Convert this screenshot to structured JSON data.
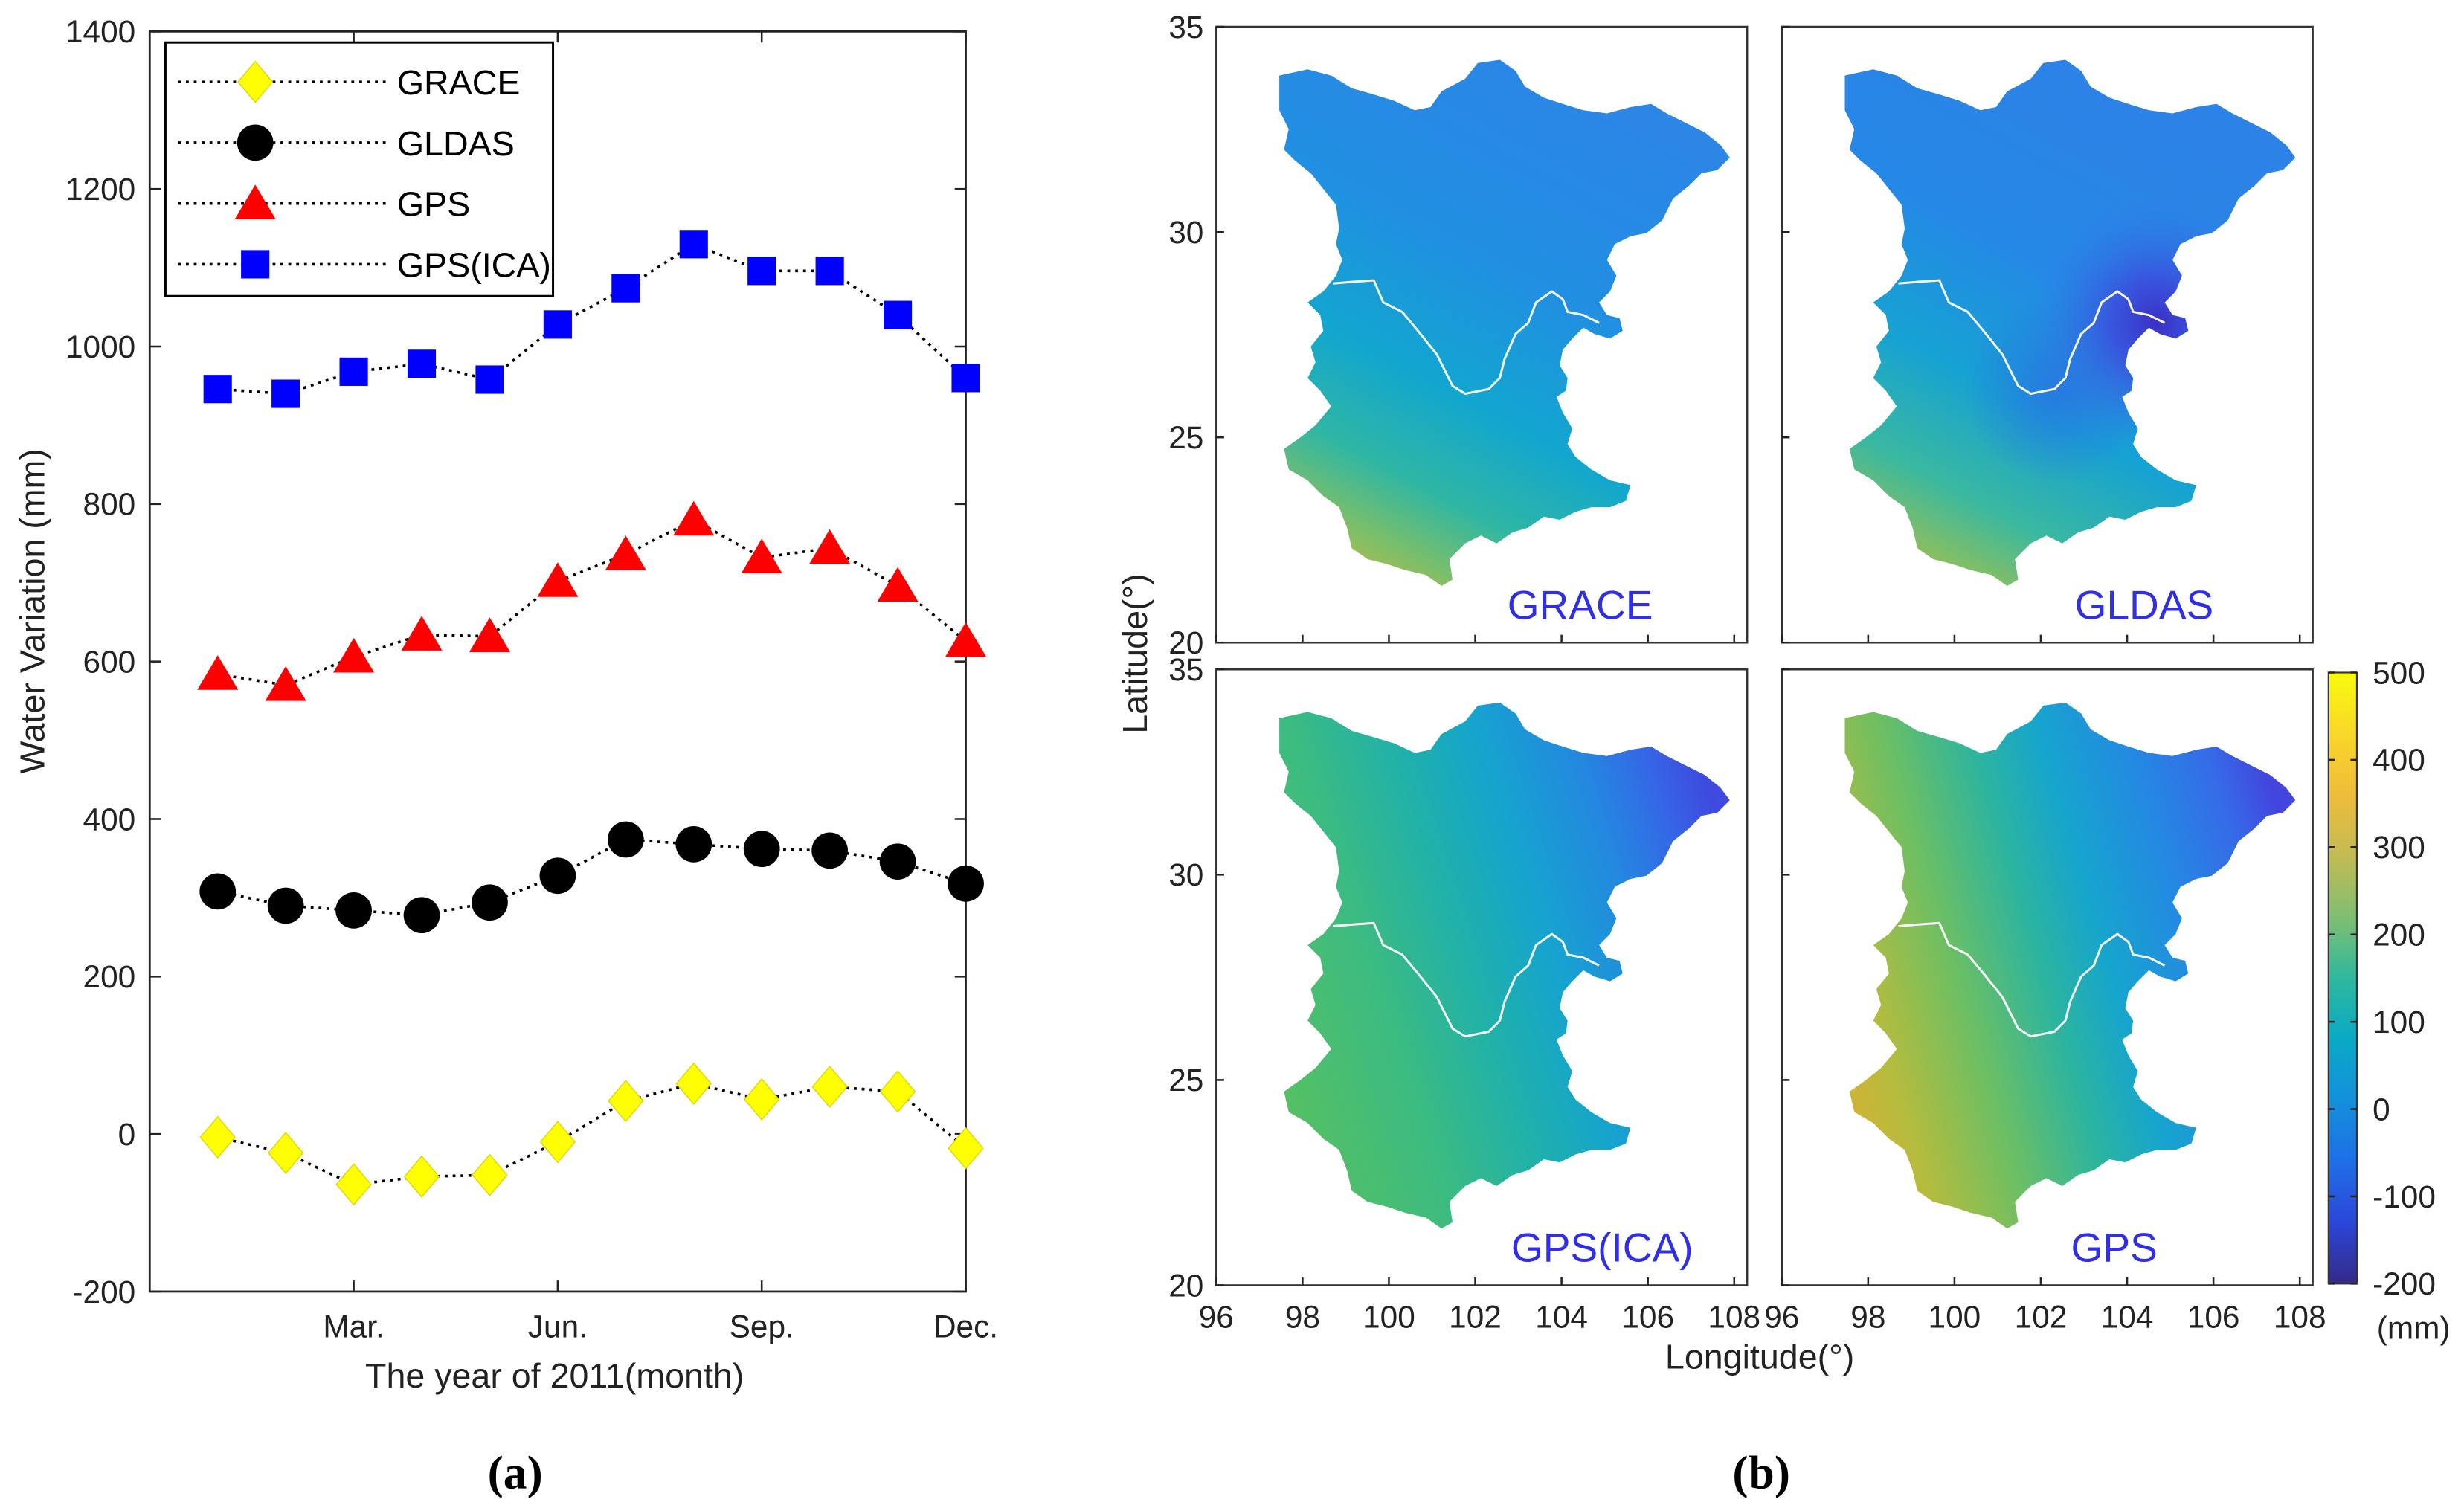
{
  "chart_data": [
    {
      "type": "line",
      "panel": "(a)",
      "xlabel": "The year of 2011(month)",
      "ylabel": "Water Variation (mm)",
      "x": [
        1,
        2,
        3,
        4,
        5,
        6,
        7,
        8,
        9,
        10,
        11,
        12
      ],
      "xlim": [
        0,
        12
      ],
      "xticks": [
        3,
        6,
        9,
        12
      ],
      "xtick_labels": [
        "Mar.",
        "Jun.",
        "Sep.",
        "Dec."
      ],
      "ylim": [
        -200,
        1400
      ],
      "yticks": [
        -200,
        0,
        200,
        400,
        600,
        800,
        1000,
        1200,
        1400
      ],
      "grid": false,
      "legend_position": "top-left",
      "series": [
        {
          "name": "GRACE",
          "marker": "diamond",
          "color": "#ffff00",
          "values": [
            -4,
            -24,
            -64,
            -54,
            -52,
            -10,
            42,
            64,
            44,
            60,
            54,
            -18
          ]
        },
        {
          "name": "GLDAS",
          "marker": "circle",
          "color": "#000000",
          "values": [
            308,
            290,
            284,
            278,
            294,
            328,
            374,
            368,
            362,
            360,
            346,
            318
          ]
        },
        {
          "name": "GPS",
          "marker": "triangle",
          "color": "#ff0000",
          "values": [
            584,
            570,
            606,
            634,
            632,
            702,
            736,
            780,
            732,
            744,
            696,
            626
          ]
        },
        {
          "name": "GPS(ICA)",
          "marker": "square",
          "color": "#0000ff",
          "values": [
            946,
            940,
            968,
            978,
            958,
            1028,
            1074,
            1130,
            1096,
            1096,
            1040,
            960
          ]
        }
      ]
    },
    {
      "type": "heatmap",
      "panel": "(b)",
      "xlabel": "Longitude(°)",
      "ylabel": "Latitude(°)",
      "xlim": [
        96,
        108.3
      ],
      "ylim": [
        20,
        35
      ],
      "xticks": [
        96,
        98,
        100,
        102,
        104,
        106,
        108
      ],
      "yticks": [
        20,
        25,
        30,
        35
      ],
      "maps": [
        {
          "title": "GRACE"
        },
        {
          "title": "GLDAS"
        },
        {
          "title": "GPS(ICA)"
        },
        {
          "title": "GPS"
        }
      ],
      "colorbar": {
        "range": [
          -200,
          500
        ],
        "ticks": [
          500,
          400,
          300,
          200,
          100,
          0,
          -100,
          -200
        ],
        "unit": "(mm)"
      }
    }
  ]
}
